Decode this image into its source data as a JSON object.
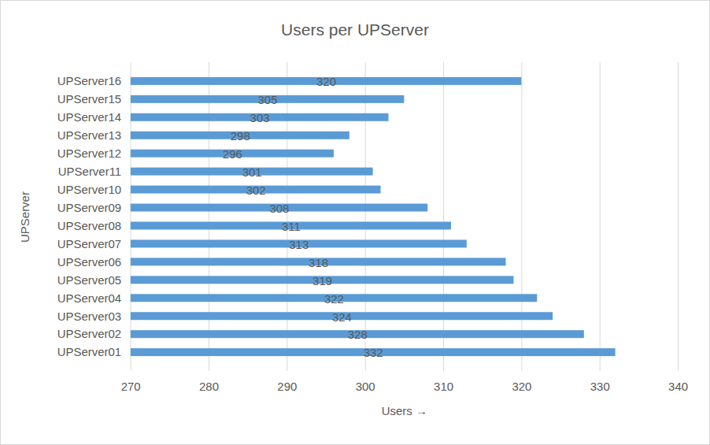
{
  "chart_data": {
    "type": "bar",
    "title": "Users per UPServer",
    "orientation": "horizontal",
    "x_label": "Users",
    "y_label": "UPServer",
    "categories": [
      "UPServer01",
      "UPServer02",
      "UPServer03",
      "UPServer04",
      "UPServer05",
      "UPServer06",
      "UPServer07",
      "UPServer08",
      "UPServer09",
      "UPServer10",
      "UPServer11",
      "UPServer12",
      "UPServer13",
      "UPServer14",
      "UPServer15",
      "UPServer16"
    ],
    "values": [
      332,
      328,
      324,
      322,
      319,
      318,
      313,
      311,
      308,
      302,
      301,
      296,
      298,
      303,
      305,
      320
    ],
    "color": "#5b9bd5",
    "xlim": [
      270,
      340
    ],
    "xticks": [
      270,
      280,
      290,
      300,
      310,
      320,
      330,
      340
    ],
    "grid": true,
    "data_labels": true
  }
}
